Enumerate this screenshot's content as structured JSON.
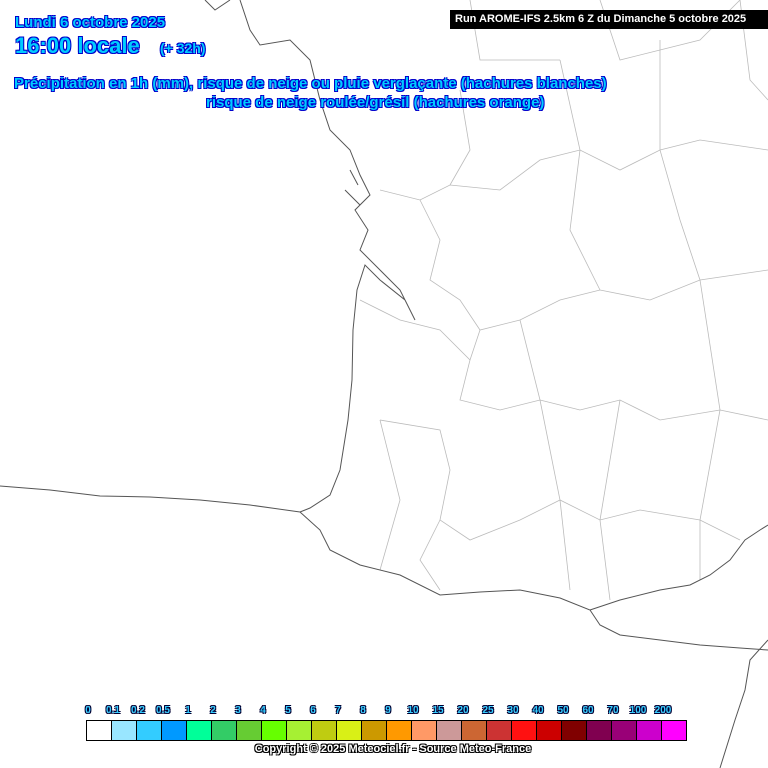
{
  "header": {
    "date": "Lundi 6 octobre 2025",
    "time": "16:00 locale",
    "lead": "(+ 32h)",
    "title_line1": "Précipitation en 1h (mm), risque de neige ou pluie verglaçante (hachures blanches)",
    "title_line2": "risque de neige roulée/grésil (hachures orange)",
    "run": "Run AROME-IFS 2.5km 6 Z du Dimanche 5 octobre 2025"
  },
  "legend": {
    "labels": [
      "0",
      "0.1",
      "0.2",
      "0.5",
      "1",
      "2",
      "3",
      "4",
      "5",
      "6",
      "7",
      "8",
      "9",
      "10",
      "15",
      "20",
      "25",
      "30",
      "40",
      "50",
      "60",
      "70",
      "100",
      "200"
    ],
    "colors": [
      "#ffffff",
      "#99e6ff",
      "#33ccff",
      "#0099ff",
      "#00ff99",
      "#33cc66",
      "#66cc33",
      "#66ff00",
      "#a6f033",
      "#bfcc11",
      "#d9f016",
      "#cc9900",
      "#ff9900",
      "#ff9966",
      "#cc9999",
      "#cc6633",
      "#cc3333",
      "#ff1111",
      "#cc0000",
      "#800000",
      "#800050",
      "#990077",
      "#cc00cc",
      "#ff00ff"
    ]
  },
  "copyright": "Copyright © 2025 Meteociel.fr - Source Meteo-France",
  "map": {
    "coast_color": "#555555",
    "border_color": "#bbbbbb"
  }
}
